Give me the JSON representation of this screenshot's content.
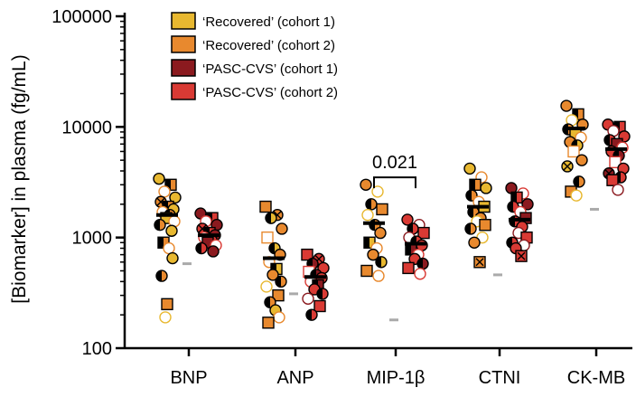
{
  "chart_data": {
    "type": "scatter",
    "title": "",
    "ylabel": "[Biomarker] in plasma (fg/mL)",
    "xlabel": "",
    "yscale": "log",
    "ylim": [
      100,
      100000
    ],
    "yticks": [
      {
        "value": 100,
        "label": "100"
      },
      {
        "value": 1000,
        "label": "1000"
      },
      {
        "value": 10000,
        "label": "10000"
      },
      {
        "value": 100000,
        "label": "100000"
      }
    ],
    "categories": [
      "BNP",
      "ANP",
      "MIP-1β",
      "CTNI",
      "CK-MB"
    ],
    "legend": [
      {
        "label": "‘Recovered’ (cohort 1)",
        "color": "#E8B830"
      },
      {
        "label": "‘Recovered’ (cohort 2)",
        "color": "#E8892E"
      },
      {
        "label": "‘PASC-CVS’ (cohort 1)",
        "color": "#8B1A1F"
      },
      {
        "label": "‘PASC-CVS’ (cohort 2)",
        "color": "#D93A34"
      }
    ],
    "annotations": [
      {
        "category": "MIP-1β",
        "text": "0.021",
        "bracket_y": 2900
      }
    ],
    "lod_values": [
      580,
      310,
      180,
      460,
      1800
    ],
    "series": [
      {
        "name": "‘Recovered’",
        "values": [
          [
            3400,
            3000,
            2600,
            2300,
            2100,
            1900,
            1800,
            1700,
            1600,
            1500,
            1400,
            1300,
            1150,
            900,
            800,
            650,
            450,
            250,
            190
          ],
          [
            1900,
            1600,
            1500,
            1200,
            1000,
            800,
            700,
            600,
            520,
            460,
            400,
            360,
            300,
            260,
            220,
            190,
            170
          ],
          [
            3000,
            2600,
            2000,
            1800,
            1600,
            1300,
            1100,
            900,
            800,
            700,
            600,
            500,
            450
          ],
          [
            4200,
            3500,
            3000,
            2800,
            2400,
            2100,
            1900,
            1700,
            1500,
            1400,
            1300,
            1200,
            1000,
            900,
            600
          ],
          [
            15500,
            13000,
            11500,
            10500,
            9500,
            8800,
            8000,
            7300,
            6800,
            6000,
            5000,
            4400,
            3200,
            2600,
            2400
          ]
        ],
        "means": [
          1600,
          650,
          1350,
          1900,
          9700
        ]
      },
      {
        "name": "‘PASC-CVS’",
        "values": [
          [
            1650,
            1500,
            1400,
            1300,
            1200,
            1100,
            1050,
            1000,
            950,
            900,
            850,
            800,
            750
          ],
          [
            700,
            640,
            580,
            530,
            490,
            460,
            430,
            400,
            370,
            340,
            310,
            280,
            240,
            200
          ],
          [
            1450,
            1300,
            1200,
            1100,
            1000,
            920,
            850,
            780,
            700,
            640,
            580,
            530,
            470
          ],
          [
            2800,
            2500,
            2300,
            2000,
            1900,
            1700,
            1500,
            1400,
            1250,
            1100,
            1000,
            900,
            850,
            800,
            680
          ],
          [
            10500,
            10000,
            9200,
            8200,
            7600,
            7000,
            6500,
            6000,
            5500,
            4800,
            4200,
            3800,
            3500,
            3300,
            2700
          ]
        ],
        "means": [
          1050,
          440,
          880,
          1450,
          6300
        ]
      }
    ]
  }
}
